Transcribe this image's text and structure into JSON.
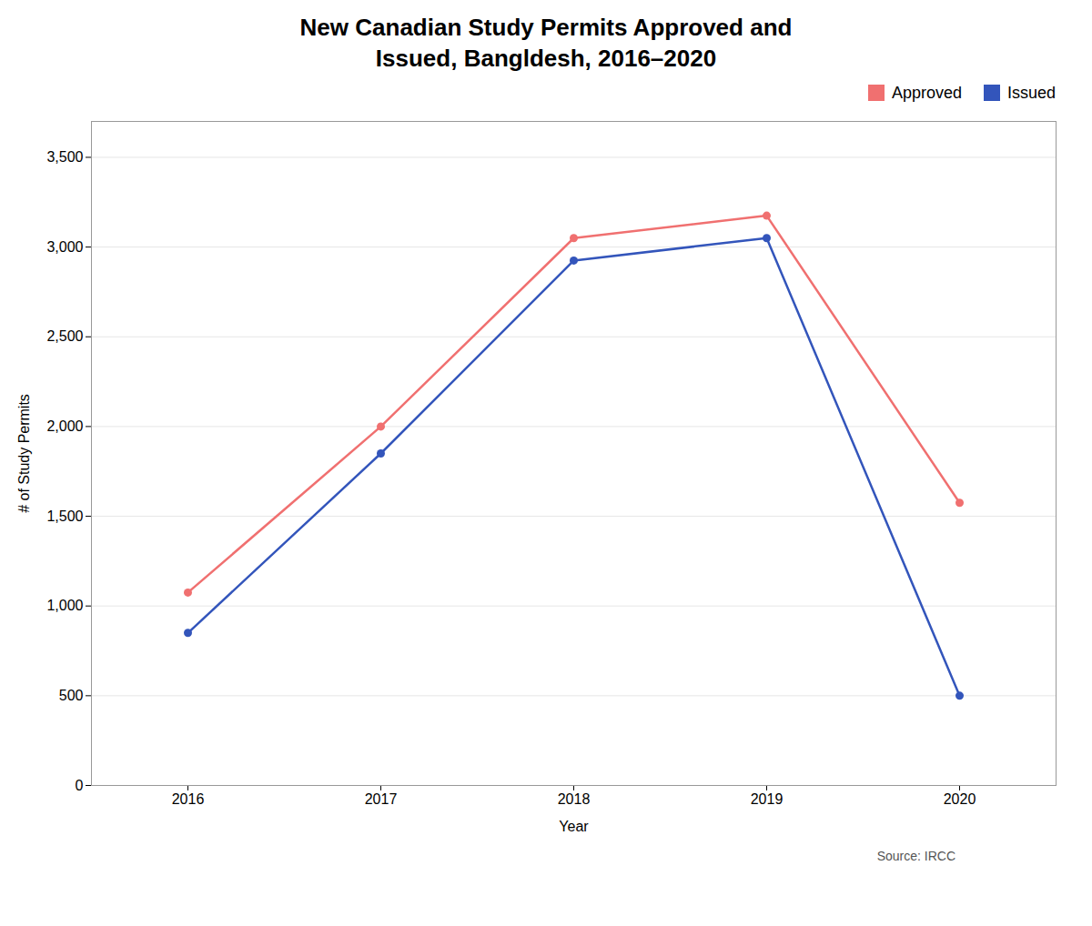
{
  "chart_data": {
    "type": "line",
    "title": "New Canadian Study Permits Approved and\nIssued, Bangldesh, 2016–2020",
    "x": [
      2016,
      2017,
      2018,
      2019,
      2020
    ],
    "series": [
      {
        "name": "Approved",
        "color": "#F07070",
        "values": [
          1075,
          2000,
          3050,
          3175,
          1575
        ]
      },
      {
        "name": "Issued",
        "color": "#3355BB",
        "values": [
          850,
          1850,
          2925,
          3050,
          500
        ]
      }
    ],
    "xlabel": "Year",
    "ylabel": "# of Study Permits",
    "xlim": [
      2015.5,
      2020.5
    ],
    "xticks": [
      2016,
      2017,
      2018,
      2019,
      2020
    ],
    "ylim": [
      0,
      3700
    ],
    "yticks": [
      0,
      500,
      {
        "value": 1000,
        "label": "1,000"
      },
      {
        "value": 1500,
        "label": "1,500"
      },
      {
        "value": 2000,
        "label": "2,000"
      },
      {
        "value": 2500,
        "label": "2,500"
      },
      {
        "value": 3000,
        "label": "3,000"
      },
      {
        "value": 3500,
        "label": "3,500"
      }
    ],
    "grid": true,
    "legend": "upper right",
    "marker": "circle",
    "source": "Source: IRCC"
  }
}
